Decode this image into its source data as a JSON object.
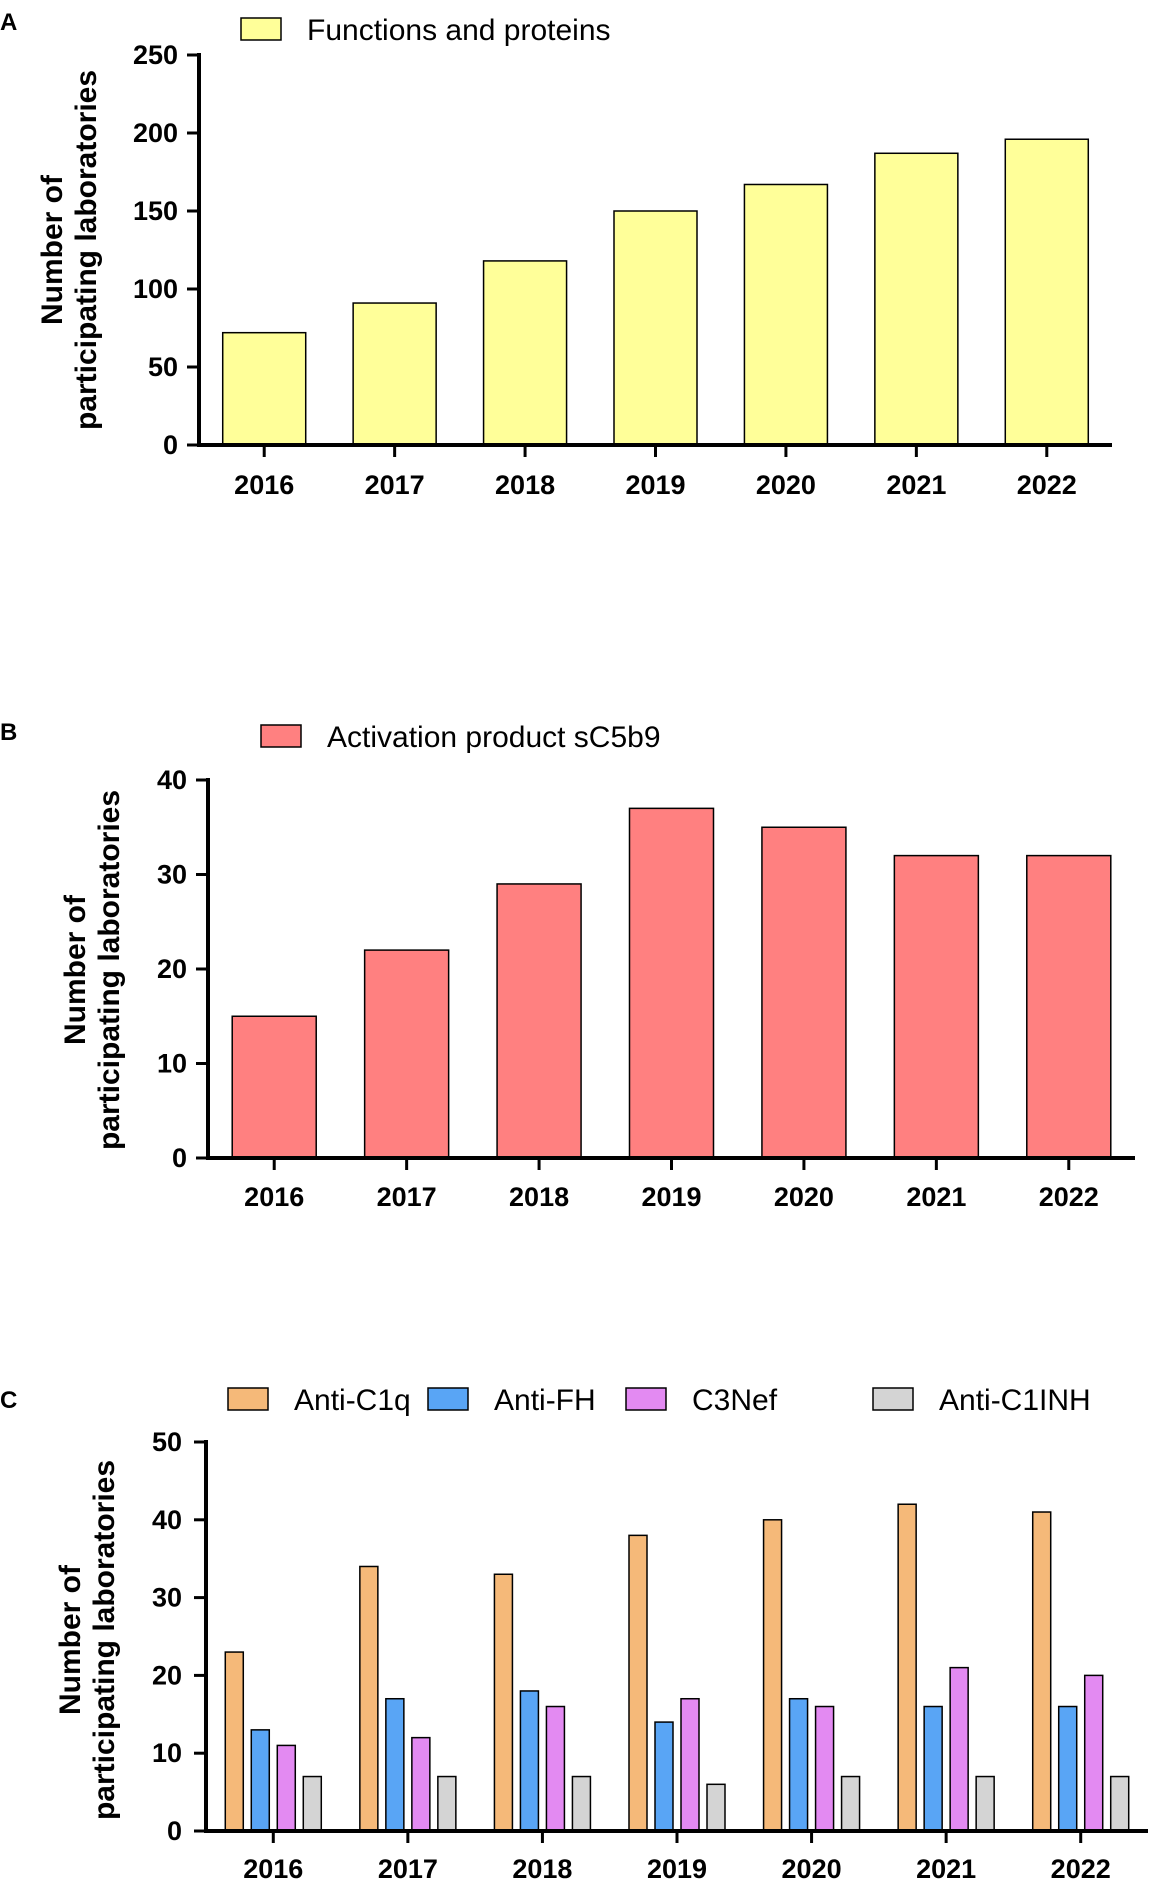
{
  "chart_data": [
    {
      "panel": "A",
      "type": "bar",
      "categories": [
        "2016",
        "2017",
        "2018",
        "2019",
        "2020",
        "2021",
        "2022"
      ],
      "series": [
        {
          "name": "Functions and proteins",
          "color": "#FFFF99",
          "values": [
            72,
            91,
            118,
            150,
            167,
            187,
            196
          ]
        }
      ],
      "ylabel": [
        "Number of",
        "participating laboratories"
      ],
      "ylim": [
        0,
        250
      ],
      "yticks": [
        "0",
        "50",
        "100",
        "150",
        "200",
        "250"
      ],
      "legend_position": "top"
    },
    {
      "panel": "B",
      "type": "bar",
      "categories": [
        "2016",
        "2017",
        "2018",
        "2019",
        "2020",
        "2021",
        "2022"
      ],
      "series": [
        {
          "name": "Activation product sC5b9",
          "color": "#FF8080",
          "values": [
            15,
            22,
            29,
            37,
            35,
            32,
            32
          ]
        }
      ],
      "ylabel": [
        "Number of",
        "participating laboratories"
      ],
      "ylim": [
        0,
        40
      ],
      "yticks": [
        "0",
        "10",
        "20",
        "30",
        "40"
      ],
      "legend_position": "top"
    },
    {
      "panel": "C",
      "type": "bar",
      "categories": [
        "2016",
        "2017",
        "2018",
        "2019",
        "2020",
        "2021",
        "2022"
      ],
      "series": [
        {
          "name": "Anti-C1q",
          "color": "#F5B979",
          "values": [
            23,
            34,
            33,
            38,
            40,
            42,
            41
          ]
        },
        {
          "name": "Anti-FH",
          "color": "#59A5F5",
          "values": [
            13,
            17,
            18,
            14,
            17,
            16,
            16
          ]
        },
        {
          "name": "C3Nef",
          "color": "#E38AF2",
          "values": [
            11,
            12,
            16,
            17,
            16,
            21,
            20
          ]
        },
        {
          "name": "Anti-C1INH",
          "color": "#D4D4D4",
          "values": [
            7,
            7,
            7,
            6,
            7,
            7,
            7
          ]
        }
      ],
      "ylabel": [
        "Number of",
        "participating laboratories"
      ],
      "ylim": [
        0,
        50
      ],
      "yticks": [
        "0",
        "10",
        "20",
        "30",
        "40",
        "50"
      ],
      "legend_position": "top"
    }
  ]
}
